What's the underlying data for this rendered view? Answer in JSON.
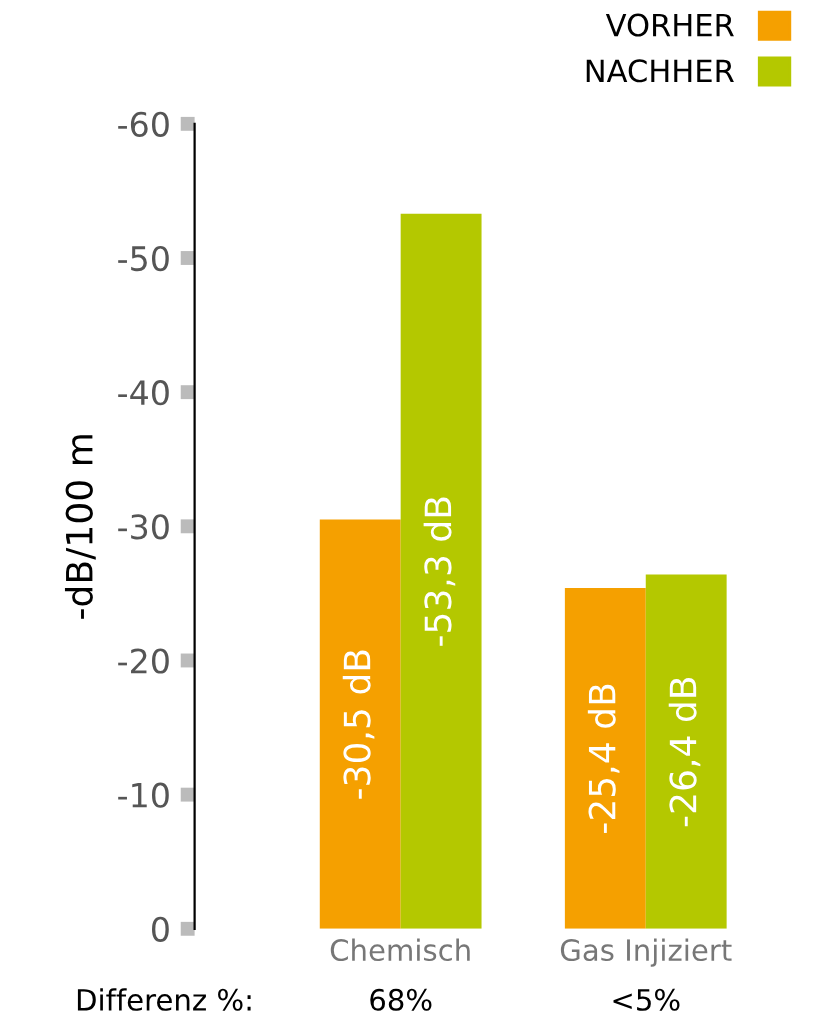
{
  "chart_data": {
    "type": "bar",
    "ylabel": "-dB/100 m",
    "categories": [
      "Chemisch",
      "Gas Injiziert"
    ],
    "series": [
      {
        "name": "VORHER",
        "color": "#f5a000",
        "values": [
          -30.5,
          -25.4
        ],
        "value_labels": [
          "-30,5 dB",
          "-25,4 dB"
        ]
      },
      {
        "name": "NACHHER",
        "color": "#b4c800",
        "values": [
          -53.3,
          -26.4
        ],
        "value_labels": [
          "-53,3 dB",
          "-26,4 dB"
        ]
      }
    ],
    "ylim": [
      0,
      -60
    ],
    "yticks": [
      0,
      -10,
      -20,
      -30,
      -40,
      -50,
      -60
    ],
    "grid": false,
    "legend": "top right",
    "annotations": [
      "Differenz %:",
      "68%",
      "<5%"
    ]
  }
}
